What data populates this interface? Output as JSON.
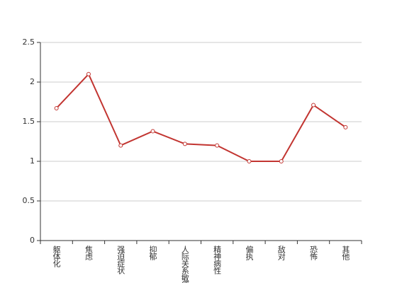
{
  "chart_data": {
    "type": "line",
    "categories": [
      "躯体化",
      "焦虑",
      "强迫症状",
      "抑郁",
      "人际关系敏感",
      "精神病性",
      "偏执",
      "敌对",
      "恐怖",
      "其他"
    ],
    "values": [
      1.67,
      2.1,
      1.2,
      1.38,
      1.22,
      1.2,
      1.0,
      1.0,
      1.71,
      1.43
    ],
    "color": "#c23531",
    "ylim": [
      0,
      2.5
    ],
    "yticks": [
      0,
      0.5,
      1,
      1.5,
      2,
      2.5
    ],
    "grid": true
  }
}
